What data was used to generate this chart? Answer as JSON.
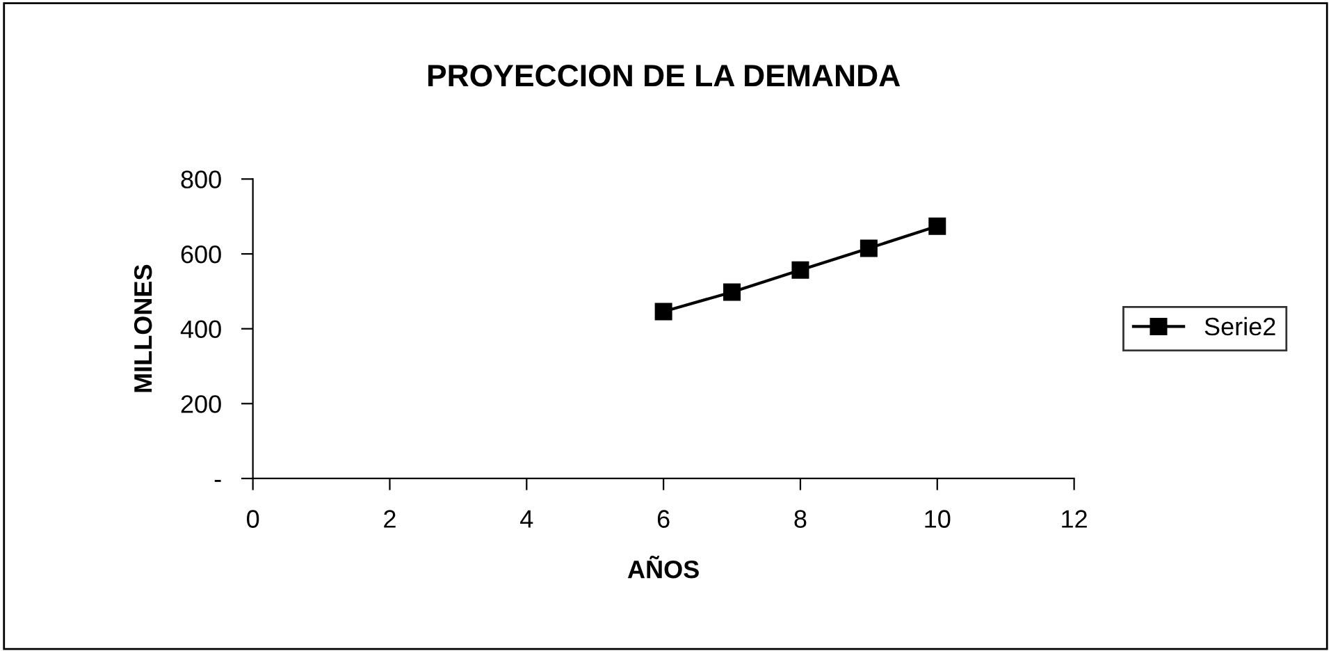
{
  "chart_data": {
    "type": "line",
    "title": "PROYECCION DE LA DEMANDA",
    "xlabel": "AÑOS",
    "ylabel": "MILLONES",
    "x": [
      6,
      7,
      8,
      9,
      10
    ],
    "series": [
      {
        "name": "Serie2",
        "color": "#000000",
        "values": [
          446,
          498,
          557,
          615,
          674
        ]
      }
    ],
    "xlim": [
      0,
      12
    ],
    "xticks": [
      0,
      2,
      4,
      6,
      8,
      10,
      12
    ],
    "ylim": [
      0,
      800
    ],
    "yticks": [
      {
        "value": 0,
        "label": "-"
      },
      200,
      400,
      600,
      800
    ],
    "marker": "square",
    "line_style": "solid",
    "legend": "right",
    "grid": false
  }
}
